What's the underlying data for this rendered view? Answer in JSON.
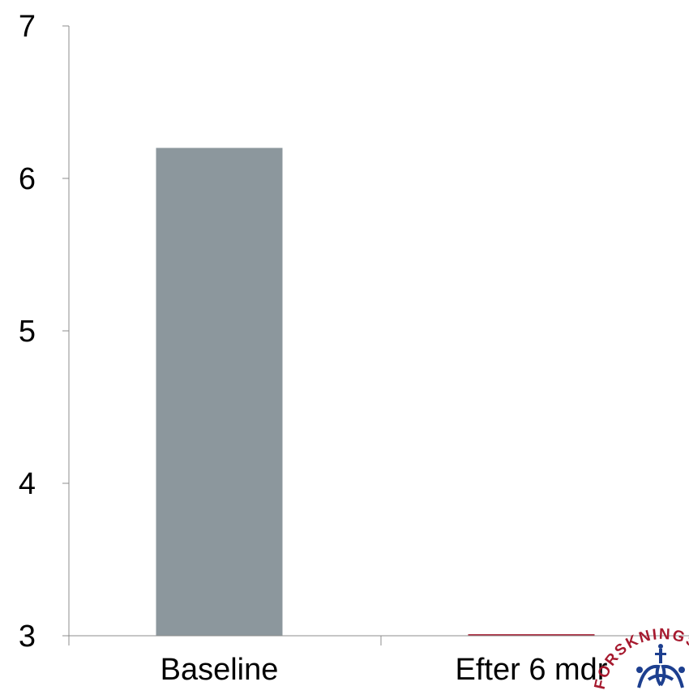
{
  "chart_data": {
    "type": "bar",
    "categories": [
      "Baseline",
      "Efter 6 mdr"
    ],
    "series": [
      {
        "values": [
          6.2,
          3.01
        ]
      }
    ],
    "ylim": [
      3,
      7
    ],
    "yticks": [
      3,
      4,
      5,
      6,
      7
    ],
    "grid": false,
    "colors": [
      "#8c979d",
      "#a6192e"
    ]
  },
  "overlays": {
    "seal": {
      "icon": "crown-seal-icon",
      "text": "FORSKNINGSCENTER",
      "color": "#a6192e",
      "crown_color": "#1d3f8f"
    },
    "partial_axis_glyph": ")"
  }
}
